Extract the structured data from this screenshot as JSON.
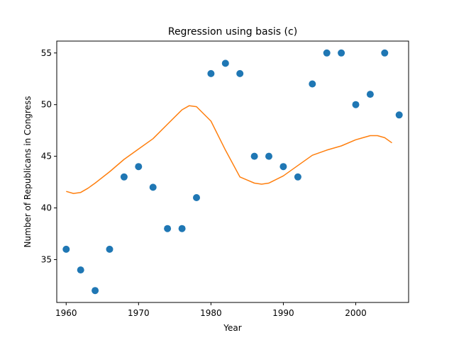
{
  "chart_data": {
    "type": "scatter",
    "title": "Regression using basis (c)",
    "xlabel": "Year",
    "ylabel": "Number of Republicans in Congress",
    "xlim": [
      1958.7,
      2007.3
    ],
    "ylim": [
      30.85,
      56.15
    ],
    "xticks": [
      1960,
      1970,
      1980,
      1990,
      2000
    ],
    "yticks": [
      35,
      40,
      45,
      50,
      55
    ],
    "grid": false,
    "colors": {
      "points": "#1f77b4",
      "fit": "#ff7f0e"
    },
    "series": [
      {
        "kind": "scatter",
        "x": [
          1960,
          1962,
          1964,
          1966,
          1968,
          1970,
          1972,
          1974,
          1976,
          1978,
          1980,
          1982,
          1984,
          1986,
          1988,
          1990,
          1992,
          1994,
          1996,
          1998,
          2000,
          2002,
          2004,
          2006
        ],
        "y": [
          36,
          34,
          32,
          36,
          43,
          44,
          42,
          38,
          38,
          41,
          53,
          54,
          53,
          45,
          45,
          44,
          43,
          52,
          55,
          55,
          50,
          51,
          55,
          49
        ]
      },
      {
        "kind": "line",
        "x": [
          1960,
          1961,
          1962,
          1963,
          1964,
          1966,
          1968,
          1970,
          1972,
          1974,
          1976,
          1977,
          1978,
          1980,
          1982,
          1984,
          1986,
          1987,
          1988,
          1990,
          1992,
          1994,
          1996,
          1998,
          2000,
          2002,
          2003,
          2004,
          2005
        ],
        "y": [
          41.6,
          41.4,
          41.5,
          41.9,
          42.4,
          43.5,
          44.7,
          45.7,
          46.7,
          48.1,
          49.5,
          49.9,
          49.8,
          48.4,
          45.6,
          43.0,
          42.4,
          42.3,
          42.4,
          43.1,
          44.1,
          45.1,
          45.6,
          46.0,
          46.6,
          47.0,
          47.0,
          46.8,
          46.3
        ]
      }
    ]
  }
}
